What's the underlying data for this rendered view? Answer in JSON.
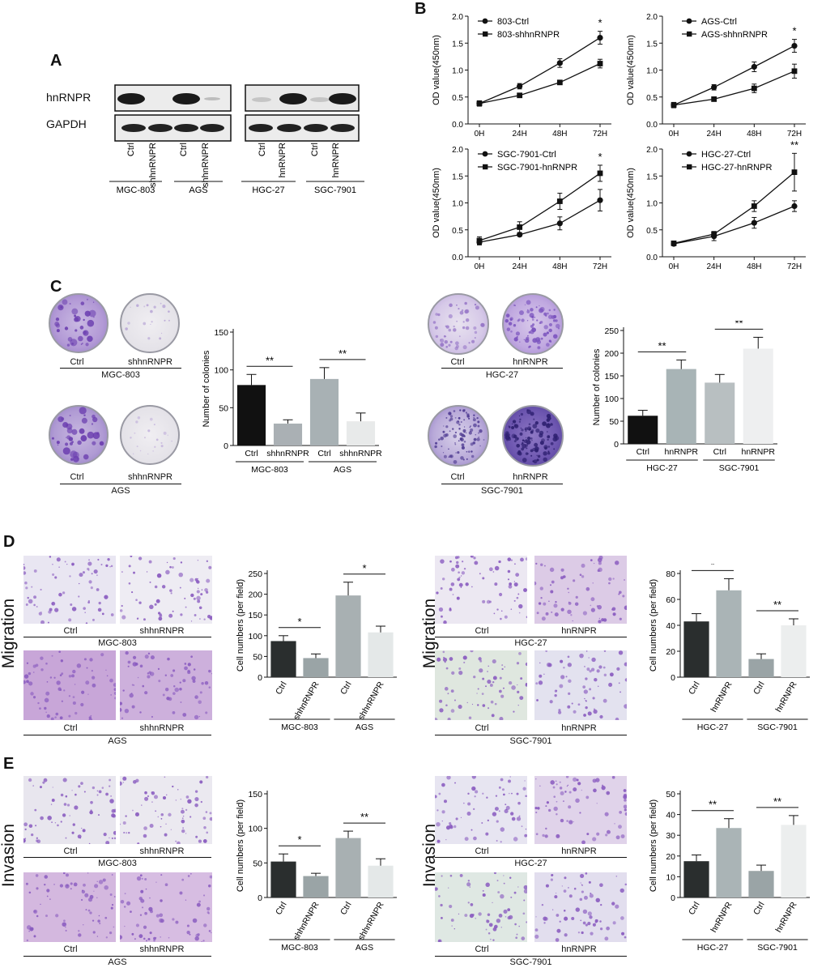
{
  "panels": {
    "A": "A",
    "B": "B",
    "C": "C",
    "D": "D",
    "E": "E"
  },
  "panelA": {
    "rows": [
      "hnRNPR",
      "GAPDH"
    ],
    "lanes": [
      "Ctrl",
      "shhnRNPR",
      "Ctrl",
      "shhnRNPR",
      "Ctrl",
      "hnRNPR",
      "Ctrl",
      "hnRNPR"
    ],
    "groups": [
      "MGC-803",
      "AGS",
      "HGC-27",
      "SGC-7901"
    ]
  },
  "panelC": {
    "dish_labels": {
      "ctrl": "Ctrl",
      "sh": "shhnRNPR",
      "oe": "hnRNPR"
    },
    "groups": {
      "mgc": "MGC-803",
      "ags": "AGS",
      "hgc": "HGC-27",
      "sgc": "SGC-7901"
    }
  },
  "panelD": {
    "side": "Migration"
  },
  "panelE": {
    "side": "Invasion"
  },
  "micro_labels": {
    "ctrl": "Ctrl",
    "sh": "shhnRNPR",
    "oe": "hnRNPR"
  },
  "micro_groups": {
    "mgc": "MGC-803",
    "ags": "AGS",
    "hgc": "HGC-27",
    "sgc": "SGC-7901"
  },
  "chart_data": [
    {
      "id": "B1",
      "type": "line",
      "ylabel": "OD value(450nm)",
      "x": [
        "0H",
        "24H",
        "48H",
        "72H"
      ],
      "ylim": [
        0,
        2.0
      ],
      "yticks": [
        0.0,
        0.5,
        1.0,
        1.5,
        2.0
      ],
      "series": [
        {
          "name": "803-Ctrl",
          "marker": "circle",
          "values": [
            0.38,
            0.7,
            1.13,
            1.6
          ],
          "err": [
            0.05,
            0.05,
            0.08,
            0.12
          ]
        },
        {
          "name": "803-shhnRNPR",
          "marker": "square",
          "values": [
            0.38,
            0.53,
            0.77,
            1.12
          ],
          "err": [
            0.04,
            0.04,
            0.04,
            0.08
          ]
        }
      ],
      "annotations": [
        "",
        "",
        "",
        "*"
      ]
    },
    {
      "id": "B2",
      "type": "line",
      "ylabel": "OD value(450nm)",
      "x": [
        "0H",
        "24H",
        "48H",
        "72H"
      ],
      "ylim": [
        0,
        2.0
      ],
      "yticks": [
        0.0,
        0.5,
        1.0,
        1.5,
        2.0
      ],
      "series": [
        {
          "name": "AGS-Ctrl",
          "marker": "circle",
          "values": [
            0.35,
            0.68,
            1.06,
            1.45
          ],
          "err": [
            0.05,
            0.05,
            0.09,
            0.12
          ]
        },
        {
          "name": "AGS-shhnRNPR",
          "marker": "square",
          "values": [
            0.35,
            0.46,
            0.66,
            0.98
          ],
          "err": [
            0.04,
            0.03,
            0.08,
            0.13
          ]
        }
      ],
      "annotations": [
        "",
        "",
        "",
        "*"
      ]
    },
    {
      "id": "B3",
      "type": "line",
      "ylabel": "OD value(450nm)",
      "x": [
        "0H",
        "24H",
        "48H",
        "72H"
      ],
      "ylim": [
        0,
        2.0
      ],
      "yticks": [
        0.0,
        0.5,
        1.0,
        1.5,
        2.0
      ],
      "series": [
        {
          "name": "SGC-7901-Ctrl",
          "marker": "circle",
          "values": [
            0.27,
            0.41,
            0.62,
            1.05
          ],
          "err": [
            0.05,
            0.03,
            0.12,
            0.2
          ]
        },
        {
          "name": "SGC-7901-hnRNPR",
          "marker": "square",
          "values": [
            0.3,
            0.55,
            1.03,
            1.55
          ],
          "err": [
            0.07,
            0.1,
            0.15,
            0.15
          ]
        }
      ],
      "annotations": [
        "",
        "",
        "",
        "*"
      ]
    },
    {
      "id": "B4",
      "type": "line",
      "ylabel": "OD value(450nm)",
      "x": [
        "0H",
        "24H",
        "48H",
        "72H"
      ],
      "ylim": [
        0,
        2.0
      ],
      "yticks": [
        0.0,
        0.5,
        1.0,
        1.5,
        2.0
      ],
      "series": [
        {
          "name": "HGC-27-Ctrl",
          "marker": "circle",
          "values": [
            0.24,
            0.38,
            0.63,
            0.94
          ],
          "err": [
            0.03,
            0.08,
            0.1,
            0.1
          ]
        },
        {
          "name": "HGC-27-hnRNPR",
          "marker": "square",
          "values": [
            0.25,
            0.42,
            0.94,
            1.57
          ],
          "err": [
            0.03,
            0.05,
            0.1,
            0.35
          ]
        }
      ],
      "annotations": [
        "",
        "",
        "",
        "**"
      ]
    },
    {
      "id": "C1",
      "type": "bar",
      "ylabel": "Number of colonies",
      "ylim": [
        0,
        150
      ],
      "yticks": [
        0,
        50,
        100,
        150
      ],
      "categories": [
        "Ctrl",
        "shhnRNPR",
        "Ctrl",
        "shhnRNPR"
      ],
      "values": [
        80,
        29,
        88,
        32
      ],
      "err": [
        14,
        5,
        15,
        11
      ],
      "colors": [
        "#111111",
        "#aab0b4",
        "#a8b1b4",
        "#e8eaea"
      ],
      "groups": [
        "MGC-803",
        "AGS"
      ],
      "sig": [
        "**",
        "**"
      ]
    },
    {
      "id": "C2",
      "type": "bar",
      "ylabel": "Number of colonies",
      "ylim": [
        0,
        250
      ],
      "yticks": [
        0,
        50,
        100,
        150,
        200,
        250
      ],
      "categories": [
        "Ctrl",
        "hnRNPR",
        "Ctrl",
        "hnRNPR"
      ],
      "values": [
        62,
        165,
        135,
        210
      ],
      "err": [
        12,
        20,
        18,
        25
      ],
      "colors": [
        "#111111",
        "#a8b4b6",
        "#b8bfc1",
        "#eeeff0"
      ],
      "groups": [
        "HGC-27",
        "SGC-7901"
      ],
      "sig": [
        "**",
        "**"
      ]
    },
    {
      "id": "D1",
      "type": "bar",
      "ylabel": "Cell numbers (per field)",
      "ylim": [
        0,
        250
      ],
      "yticks": [
        0,
        50,
        100,
        150,
        200,
        250
      ],
      "categories": [
        "Ctrl",
        "shhnRNPR",
        "Ctrl",
        "shhnRNPR"
      ],
      "values": [
        87,
        46,
        197,
        108
      ],
      "err": [
        13,
        10,
        32,
        15
      ],
      "colors": [
        "#2a2e2e",
        "#9aa4a6",
        "#a8b0b2",
        "#e4e8e8"
      ],
      "groups": [
        "MGC-803",
        "AGS"
      ],
      "sig": [
        "*",
        "*"
      ]
    },
    {
      "id": "D2",
      "type": "bar",
      "ylabel": "Cell numbers (per field)",
      "ylim": [
        0,
        80
      ],
      "yticks": [
        0,
        20,
        40,
        60,
        80
      ],
      "categories": [
        "Ctrl",
        "hnRNPR",
        "Ctrl",
        "hnRNPR"
      ],
      "values": [
        43,
        67,
        14,
        40
      ],
      "err": [
        6,
        9,
        4,
        5
      ],
      "colors": [
        "#2a2e2e",
        "#aab4b6",
        "#9aa4a6",
        "#eceeee"
      ],
      "groups": [
        "HGC-27",
        "SGC-7901"
      ],
      "sig": [
        "*",
        "**"
      ]
    },
    {
      "id": "E1",
      "type": "bar",
      "ylabel": "Cell numbers (per field)",
      "ylim": [
        0,
        150
      ],
      "yticks": [
        0,
        50,
        100,
        150
      ],
      "categories": [
        "Ctrl",
        "shhnRNPR",
        "Ctrl",
        "shhnRNPR"
      ],
      "values": [
        52,
        31,
        86,
        46
      ],
      "err": [
        11,
        4,
        10,
        10
      ],
      "colors": [
        "#2a2e2e",
        "#9aa4a6",
        "#a8b0b2",
        "#e4e8e8"
      ],
      "groups": [
        "MGC-803",
        "AGS"
      ],
      "sig": [
        "*",
        "**"
      ]
    },
    {
      "id": "E2",
      "type": "bar",
      "ylabel": "Cell numbers (per field)",
      "ylim": [
        0,
        50
      ],
      "yticks": [
        0,
        10,
        20,
        30,
        40,
        50
      ],
      "categories": [
        "Ctrl",
        "hnRNPR",
        "Ctrl",
        "hnRNPR"
      ],
      "values": [
        17.5,
        33.5,
        12.8,
        35
      ],
      "err": [
        3,
        4.5,
        2.8,
        4.5
      ],
      "colors": [
        "#2a2e2e",
        "#aab4b6",
        "#9aa4a6",
        "#eceeee"
      ],
      "groups": [
        "HGC-27",
        "SGC-7901"
      ],
      "sig": [
        "**",
        "**"
      ]
    }
  ]
}
